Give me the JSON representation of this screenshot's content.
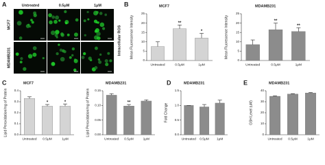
{
  "panel_letters": [
    "A",
    "B",
    "C",
    "D",
    "E"
  ],
  "panel_a": {
    "columns": [
      "Untreated",
      "0.5μM",
      "1μM"
    ],
    "rows": [
      "MCF7",
      "MDAMB231"
    ],
    "side_label": "Intracellular ROS"
  },
  "charts": [
    {
      "title": "MCF7",
      "ylabel": "Mean Fluorescence Intensity",
      "categories": [
        "Untreated",
        "0.5μM",
        "1μM"
      ],
      "values": [
        7.5,
        17,
        12
      ],
      "errors": [
        2.5,
        2,
        2.5
      ],
      "annotations": [
        null,
        "**",
        "*"
      ],
      "color": "#d4d4d4",
      "ylim": [
        0,
        25
      ],
      "yticks": [
        0,
        5,
        10,
        15,
        20,
        25
      ]
    },
    {
      "title": "MDAMB231",
      "ylabel": "Mean Fluorescence Intensity",
      "categories": [
        "Untreated",
        "0.5μM",
        "1μM"
      ],
      "values": [
        8.5,
        16.5,
        15.5
      ],
      "errors": [
        2.5,
        3.5,
        2
      ],
      "annotations": [
        null,
        "**",
        "**"
      ],
      "color": "#8c8c8c",
      "ylim": [
        0,
        25
      ],
      "yticks": [
        0,
        5,
        10,
        15,
        20,
        25
      ]
    },
    {
      "title": "MCF7",
      "ylabel": "Lipid Peroxidation/mg of Protein",
      "categories": [
        "Untreated",
        "0.5μM",
        "1μM"
      ],
      "values": [
        0.33,
        0.26,
        0.26
      ],
      "errors": [
        0.015,
        0.015,
        0.02
      ],
      "annotations": [
        null,
        "*",
        "*"
      ],
      "color": "#d4d4d4",
      "ylim": [
        0,
        0.4
      ],
      "yticks": [
        {
          "value": 0,
          "label": "0.0"
        },
        0.1,
        0.2,
        0.3,
        0.4
      ]
    },
    {
      "title": "MDAMB231",
      "ylabel": "Lipid Peroxidation/mg of Protein",
      "categories": [
        "Untreated",
        "0.5μM",
        "1μM"
      ],
      "values": [
        0.135,
        0.098,
        0.115
      ],
      "errors": [
        0.005,
        0.005,
        0.004
      ],
      "annotations": [
        null,
        "**",
        null
      ],
      "color": "#8c8c8c",
      "ylim": [
        0,
        0.15
      ],
      "yticks": [
        {
          "value": 0,
          "label": "0.00"
        },
        0.05,
        {
          "value": 0.1,
          "label": "0.10"
        },
        0.15
      ]
    },
    {
      "title": "MDAMB231",
      "ylabel": "Fold Change",
      "categories": [
        "Untreated",
        "0.5μM",
        "1μM"
      ],
      "values": [
        1,
        0.95,
        1.08
      ],
      "errors": [
        0,
        0.08,
        0.1
      ],
      "annotations": [
        null,
        null,
        null
      ],
      "color": "#8c8c8c",
      "ylim": [
        0,
        1.5
      ],
      "yticks": [
        {
          "value": 0,
          "label": "0.0"
        },
        0.5,
        {
          "value": 1,
          "label": "1.0"
        },
        1.5
      ]
    },
    {
      "title": "MDAMB231",
      "ylabel": "GSH Level (uM)",
      "categories": [
        "Untreated",
        "0.5μM",
        "1μM"
      ],
      "values": [
        35,
        37,
        38
      ],
      "errors": [
        0.4,
        0.4,
        0.4
      ],
      "annotations": [
        null,
        null,
        null
      ],
      "color": "#8c8c8c",
      "ylim": [
        0,
        40
      ],
      "yticks": [
        0,
        10,
        20,
        30,
        40
      ]
    }
  ]
}
